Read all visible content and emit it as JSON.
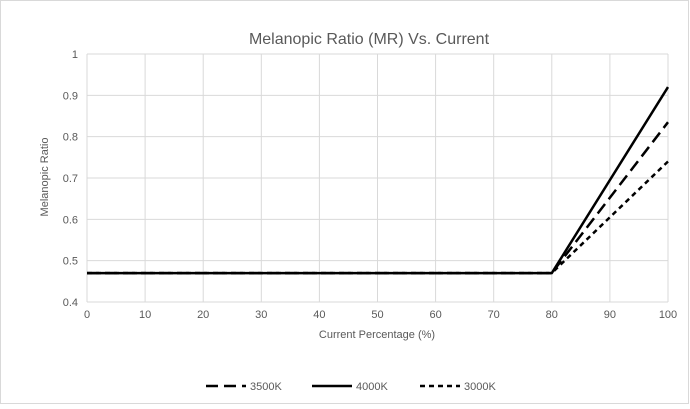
{
  "chart_data": {
    "type": "line",
    "title": "Melanopic Ratio (MR) Vs. Current",
    "xlabel": "Current Percentage (%)",
    "ylabel": "Melanopic Ratio",
    "xlim": [
      0,
      100
    ],
    "ylim": [
      0.4,
      1.0
    ],
    "x_ticks": [
      0,
      10,
      20,
      30,
      40,
      50,
      60,
      70,
      80,
      90,
      100
    ],
    "x_tick_labels": [
      "0",
      "10",
      "20",
      "30",
      "40",
      "50",
      "60",
      "70",
      "80",
      "90",
      "100"
    ],
    "y_ticks": [
      0.4,
      0.5,
      0.6,
      0.7,
      0.8,
      0.9,
      1.0
    ],
    "y_tick_labels": [
      "0.4",
      "0.5",
      "0.6",
      "0.7",
      "0.8",
      "0.9",
      "1"
    ],
    "grid": true,
    "legend_position": "bottom",
    "series": [
      {
        "name": "3500K",
        "style": "dashed",
        "color": "#000000",
        "x": [
          0,
          80,
          100
        ],
        "y": [
          0.47,
          0.47,
          0.835
        ]
      },
      {
        "name": "4000K",
        "style": "solid",
        "color": "#000000",
        "x": [
          0,
          80,
          100
        ],
        "y": [
          0.47,
          0.47,
          0.92
        ]
      },
      {
        "name": "3000K",
        "style": "dotted",
        "color": "#000000",
        "x": [
          0,
          80,
          100
        ],
        "y": [
          0.47,
          0.47,
          0.74
        ]
      }
    ]
  }
}
